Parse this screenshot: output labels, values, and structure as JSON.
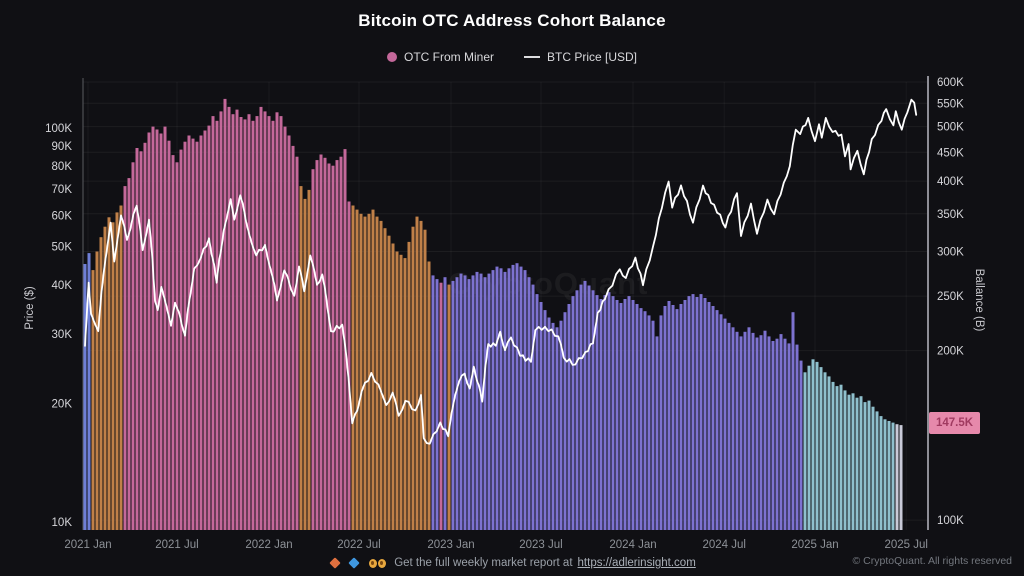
{
  "title": "Bitcoin OTC Address Cohort Balance",
  "legend": [
    {
      "label": "OTC From Miner",
      "color": "#c4689a"
    },
    {
      "label": "BTC Price [USD]",
      "color": "#ffffff"
    }
  ],
  "watermark": "CryptoQuant",
  "footer": {
    "text": "Get the full weekly market report at ",
    "link": "https://adlerinsight.com",
    "copyright": "© CryptoQuant. All rights reserved"
  },
  "chart_data": {
    "type": [
      "bar",
      "line"
    ],
    "colors": {
      "pink": "#c4689a",
      "orange": "#c08048",
      "purple": "#7d72d0",
      "teal": "#8fc0cd",
      "gray": "#c9cad8",
      "blue": "#6f7fd6",
      "line": "#ffffff",
      "badge_bg": "#e689ab",
      "badge_text": "#a03a60"
    },
    "x_axis": {
      "ticks": [
        {
          "label": "2021 Jan",
          "i": 0.75
        },
        {
          "label": "2021 Jul",
          "i": 23
        },
        {
          "label": "2022 Jan",
          "i": 46
        },
        {
          "label": "2022 Jul",
          "i": 68.5
        },
        {
          "label": "2023 Jan",
          "i": 91.5
        },
        {
          "label": "2023 Jul",
          "i": 114
        },
        {
          "label": "2024 Jan",
          "i": 137
        },
        {
          "label": "2024 Jul",
          "i": 159.8
        },
        {
          "label": "2025 Jan",
          "i": 182.5
        },
        {
          "label": "2025 Jul",
          "i": 205.3
        }
      ]
    },
    "y_left": {
      "title": "Price ($)",
      "scale": "log",
      "ticks_k": [
        100,
        90,
        80,
        70,
        60,
        50,
        40,
        30,
        20,
        10
      ]
    },
    "y_right": {
      "title": "Ballance (B)",
      "scale": "log",
      "ticks_k": [
        600,
        550,
        500,
        450,
        400,
        350,
        300,
        250,
        200,
        100
      ],
      "last_value_k": 147.5,
      "last_value_label": "147.5K"
    },
    "bar_series": {
      "name": "OTC From Miner",
      "axis": "right",
      "unit": "K BTC",
      "segments": [
        {
          "color": "blue",
          "values": [
            285,
            298
          ]
        },
        {
          "color": "orange",
          "values": [
            278,
            300,
            318,
            332,
            345,
            338,
            352,
            362
          ]
        },
        {
          "color": "pink",
          "values": [
            392,
            405,
            432,
            458,
            452,
            468,
            488,
            500,
            494,
            486,
            500,
            472,
            445,
            432,
            455,
            470,
            482,
            476,
            470,
            482,
            492,
            502,
            522,
            512,
            532,
            560,
            542,
            526,
            536,
            520,
            515,
            526,
            512,
            522,
            542,
            532,
            522,
            512,
            530,
            522,
            500,
            482,
            462,
            442
          ]
        },
        {
          "color": "orange",
          "values": [
            392,
            372,
            386
          ]
        },
        {
          "color": "pink",
          "values": [
            420,
            436,
            446,
            440,
            430,
            426,
            436,
            442,
            456,
            368
          ]
        },
        {
          "color": "orange",
          "values": [
            362,
            356,
            350,
            346,
            350,
            356,
            346,
            340,
            330,
            320,
            310,
            300,
            296,
            292,
            312,
            332,
            346,
            340,
            328,
            288
          ]
        },
        {
          "color": "purple",
          "values": [
            272,
            268
          ]
        },
        {
          "color": "pink",
          "values": [
            264
          ]
        },
        {
          "color": "purple",
          "values": [
            270
          ]
        },
        {
          "color": "orange",
          "values": [
            262
          ]
        },
        {
          "color": "purple",
          "values": [
            266,
            270,
            274,
            272,
            268,
            272,
            276,
            274,
            270,
            274,
            278,
            282,
            280,
            276,
            280,
            284,
            286,
            282,
            278,
            270,
            262,
            252,
            244,
            236,
            229,
            224,
            220,
            226,
            234,
            242,
            250,
            256,
            262,
            266,
            261,
            256,
            251,
            247,
            251,
            254,
            250,
            246,
            243,
            247,
            250,
            246,
            242,
            238,
            235,
            231,
            226,
            212,
            231,
            240,
            245,
            241,
            237,
            242,
            246,
            250,
            252,
            249,
            252,
            248,
            244,
            240,
            236,
            232,
            228,
            224,
            220,
            216,
            212,
            216,
            220,
            215,
            211,
            213,
            217,
            212,
            208,
            210,
            214,
            210,
            206,
            234,
            205,
            192
          ]
        },
        {
          "color": "teal",
          "values": [
            183,
            188,
            193,
            191,
            187,
            183,
            180,
            176,
            173,
            174,
            170,
            167,
            168,
            165,
            166,
            162,
            163,
            159,
            156,
            153,
            151,
            150,
            149
          ]
        },
        {
          "color": "gray",
          "values": [
            148,
            147.5
          ]
        }
      ]
    },
    "line_series": {
      "name": "BTC Price [USD]",
      "axis": "left",
      "unit": "K USD",
      "points": [
        [
          0,
          28
        ],
        [
          0.9,
          40.5
        ],
        [
          1.5,
          33.8
        ],
        [
          2.4,
          32
        ],
        [
          3.3,
          30.5
        ],
        [
          4.8,
          44
        ],
        [
          6.4,
          57.5
        ],
        [
          7.3,
          45.8
        ],
        [
          9,
          60
        ],
        [
          10.5,
          52
        ],
        [
          12.9,
          63.5
        ],
        [
          14.4,
          49
        ],
        [
          16,
          58.5
        ],
        [
          17.5,
          36.5
        ],
        [
          18.2,
          34.5
        ],
        [
          19.1,
          39.5
        ],
        [
          20.3,
          35.5
        ],
        [
          21.5,
          31.5
        ],
        [
          22.5,
          36
        ],
        [
          23.6,
          33.8
        ],
        [
          25,
          29.7
        ],
        [
          27.3,
          44
        ],
        [
          29,
          47
        ],
        [
          31,
          52.5
        ],
        [
          32.9,
          40.5
        ],
        [
          34.7,
          55
        ],
        [
          36.4,
          66
        ],
        [
          37.3,
          58.5
        ],
        [
          38.8,
          67.5
        ],
        [
          41,
          54
        ],
        [
          42.8,
          47.5
        ],
        [
          45,
          50.5
        ],
        [
          46.6,
          43
        ],
        [
          48,
          36.5
        ],
        [
          49.8,
          43.5
        ],
        [
          52.3,
          37.5
        ],
        [
          53.5,
          44.5
        ],
        [
          54.8,
          38.5
        ],
        [
          56.3,
          47.5
        ],
        [
          58,
          40
        ],
        [
          59.3,
          42.5
        ],
        [
          61.5,
          30.5
        ],
        [
          64.3,
          31.7
        ],
        [
          66,
          22.5
        ],
        [
          66.8,
          17.8
        ],
        [
          68.1,
          19.2
        ],
        [
          69.2,
          21.5
        ],
        [
          71.6,
          23.9
        ],
        [
          74.2,
          21.2
        ],
        [
          75.3,
          19.8
        ],
        [
          76.9,
          21.3
        ],
        [
          78.4,
          18.6
        ],
        [
          80.1,
          20.3
        ],
        [
          82.6,
          19.2
        ],
        [
          84,
          21
        ],
        [
          84.7,
          16.3
        ],
        [
          86.2,
          15.8
        ],
        [
          88.8,
          17.9
        ],
        [
          90.8,
          16.5
        ],
        [
          92.5,
          20.9
        ],
        [
          93.5,
          22.7
        ],
        [
          94.9,
          23.8
        ],
        [
          96.2,
          21.8
        ],
        [
          97.2,
          24.8
        ],
        [
          99.3,
          20.2
        ],
        [
          100.8,
          28.3
        ],
        [
          102.7,
          28
        ],
        [
          103.8,
          30.4
        ],
        [
          105,
          27.3
        ],
        [
          106.5,
          29.4
        ],
        [
          108.8,
          26.4
        ],
        [
          111.5,
          25.5
        ],
        [
          112.6,
          30.7
        ],
        [
          115,
          31.3
        ],
        [
          118.3,
          29.6
        ],
        [
          119.7,
          26.1
        ],
        [
          122.6,
          25.1
        ],
        [
          125.1,
          27
        ],
        [
          127,
          28.4
        ],
        [
          128.2,
          34
        ],
        [
          130,
          36.8
        ],
        [
          133.7,
          43.8
        ],
        [
          135.2,
          41.6
        ],
        [
          137.6,
          46.9
        ],
        [
          139.5,
          39.9
        ],
        [
          142,
          50
        ],
        [
          144.2,
          62.5
        ],
        [
          145.9,
          73.1
        ],
        [
          146.8,
          62.8
        ],
        [
          149,
          71.5
        ],
        [
          152,
          57.5
        ],
        [
          154.5,
          71.4
        ],
        [
          156.5,
          64.5
        ],
        [
          158.8,
          60.3
        ],
        [
          160.1,
          55.9
        ],
        [
          163,
          68.3
        ],
        [
          164,
          53.2
        ],
        [
          166.5,
          64.3
        ],
        [
          168,
          53.9
        ],
        [
          170.6,
          65.8
        ],
        [
          172.3,
          60.4
        ],
        [
          174.7,
          72.7
        ],
        [
          176.2,
          80
        ],
        [
          177.7,
          99
        ],
        [
          178.8,
          96.5
        ],
        [
          180.8,
          106.1
        ],
        [
          182.5,
          92.6
        ],
        [
          183.5,
          102.2
        ],
        [
          184.2,
          94.5
        ],
        [
          185.2,
          106.1
        ],
        [
          186.9,
          97.7
        ],
        [
          189.1,
          96.2
        ],
        [
          190,
          84.7
        ],
        [
          190.9,
          91
        ],
        [
          191.4,
          78.5
        ],
        [
          193.1,
          87.5
        ],
        [
          194.7,
          76.3
        ],
        [
          196.7,
          93.7
        ],
        [
          199.1,
          104.1
        ],
        [
          200.3,
          111.7
        ],
        [
          202.1,
          101.6
        ],
        [
          202.7,
          110.3
        ],
        [
          204.2,
          99
        ],
        [
          205.6,
          109.6
        ],
        [
          206.6,
          118
        ],
        [
          207.3,
          116
        ],
        [
          207.8,
          108
        ]
      ]
    }
  }
}
